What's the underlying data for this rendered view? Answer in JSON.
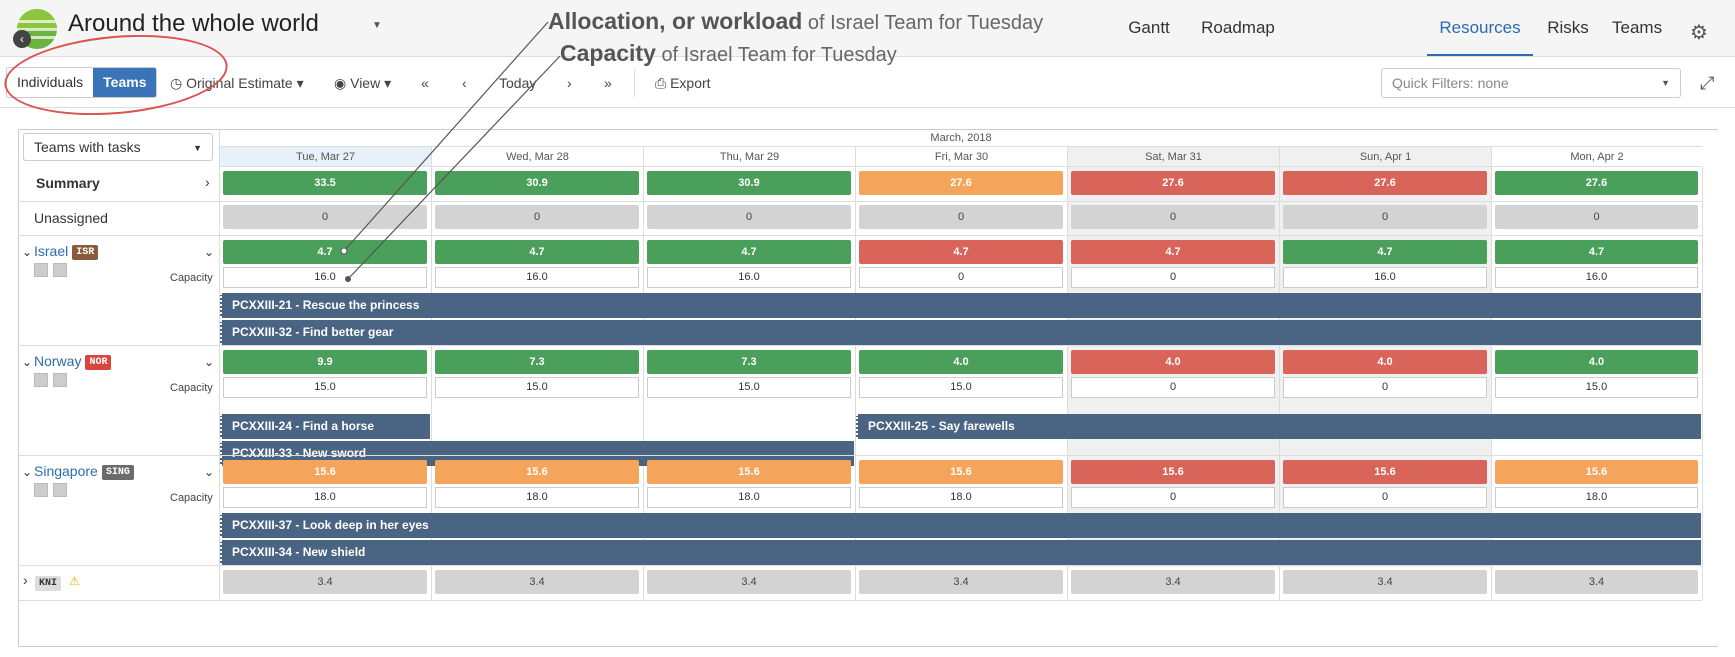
{
  "header": {
    "project_title": "Around the whole world",
    "nav": [
      "Gantt",
      "Roadmap",
      "Resources",
      "Risks",
      "Teams"
    ],
    "active_nav": "Resources"
  },
  "toolbar": {
    "seg_individuals": "Individuals",
    "seg_teams": "Teams",
    "estimate": "Original Estimate",
    "view": "View",
    "first": "«",
    "prev": "‹",
    "today": "Today",
    "next": "›",
    "last": "»",
    "export": "Export",
    "quick_filters": "Quick Filters: none"
  },
  "annotations": {
    "alloc_bold": "Allocation, or workload",
    "alloc_rest": "of Israel Team for Tuesday",
    "cap_bold": "Capacity",
    "cap_rest": "of Israel Team for Tuesday"
  },
  "grid": {
    "group_select": "Teams with tasks",
    "month": "March, 2018",
    "days": [
      "Tue, Mar 27",
      "Wed, Mar 28",
      "Thu, Mar 29",
      "Fri, Mar 30",
      "Sat, Mar 31",
      "Sun, Apr 1",
      "Mon, Apr 2"
    ],
    "summary": {
      "label": "Summary",
      "values": [
        "33.5",
        "30.9",
        "30.9",
        "27.6",
        "27.6",
        "27.6",
        "27.6"
      ],
      "colors": [
        "green",
        "green",
        "green",
        "orange",
        "red",
        "red",
        "green"
      ]
    },
    "unassigned": {
      "label": "Unassigned",
      "values": [
        "0",
        "0",
        "0",
        "0",
        "0",
        "0",
        "0"
      ]
    },
    "capacity_label": "Capacity",
    "teams": [
      {
        "name": "Israel",
        "badge": "ISR",
        "badge_color": "#8a5a3c",
        "alloc": [
          "4.7",
          "4.7",
          "4.7",
          "4.7",
          "4.7",
          "4.7",
          "4.7"
        ],
        "alloc_colors": [
          "green",
          "green",
          "green",
          "red",
          "red",
          "green",
          "green"
        ],
        "capacity": [
          "16.0",
          "16.0",
          "16.0",
          "0",
          "0",
          "16.0",
          "16.0"
        ],
        "tasks": [
          {
            "label": "PCXXIII-21 - Rescue the princess",
            "start": 0,
            "end": 7
          },
          {
            "label": "PCXXIII-32 - Find better gear",
            "start": 0,
            "end": 7
          }
        ]
      },
      {
        "name": "Norway",
        "badge": "NOR",
        "badge_color": "#d9443b",
        "alloc": [
          "9.9",
          "7.3",
          "7.3",
          "4.0",
          "4.0",
          "4.0",
          "4.0"
        ],
        "alloc_colors": [
          "green",
          "green",
          "green",
          "green",
          "red",
          "red",
          "green"
        ],
        "capacity": [
          "15.0",
          "15.0",
          "15.0",
          "15.0",
          "0",
          "0",
          "15.0"
        ],
        "tasks": [
          {
            "label": "PCXXIII-24 - Find a horse",
            "start": 0,
            "end": 1
          },
          {
            "label": "PCXXIII-25 - Say farewells",
            "start": 3,
            "end": 7
          },
          {
            "label": "PCXXIII-33 - New sword",
            "start": 0,
            "end": 3
          }
        ]
      },
      {
        "name": "Singapore",
        "badge": "SING",
        "badge_color": "#6b6b6b",
        "alloc": [
          "15.6",
          "15.6",
          "15.6",
          "15.6",
          "15.6",
          "15.6",
          "15.6"
        ],
        "alloc_colors": [
          "orange",
          "orange",
          "orange",
          "orange",
          "red",
          "red",
          "orange"
        ],
        "capacity": [
          "18.0",
          "18.0",
          "18.0",
          "18.0",
          "0",
          "0",
          "18.0"
        ],
        "tasks": [
          {
            "label": "PCXXIII-37 - Look deep in her eyes",
            "start": 0,
            "end": 7
          },
          {
            "label": "PCXXIII-34 - New shield",
            "start": 0,
            "end": 7
          }
        ]
      }
    ],
    "kni": {
      "badge": "KNI",
      "values": [
        "3.4",
        "3.4",
        "3.4",
        "3.4",
        "3.4",
        "3.4",
        "3.4"
      ]
    }
  }
}
